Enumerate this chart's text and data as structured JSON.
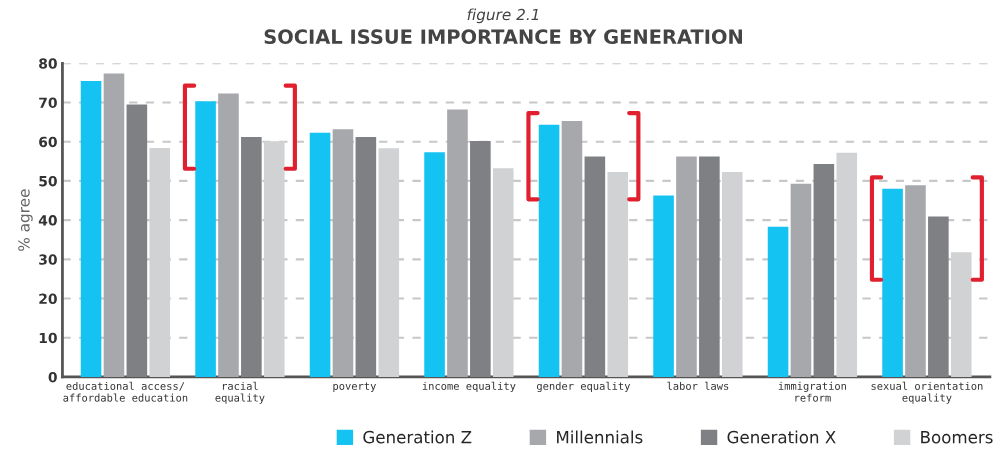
{
  "chart_data": {
    "type": "bar",
    "subtitle": "figure 2.1",
    "title": "SOCIAL ISSUE IMPORTANCE BY GENERATION",
    "ylabel": "% agree",
    "categories": [
      "educational access/\naffordable education",
      "racial\nequality",
      "poverty",
      "income equality",
      "gender equality",
      "labor laws",
      "immigration\nreform",
      "sexual orientation\nequality"
    ],
    "series": [
      {
        "name": "Generation Z",
        "color": "#14c3f2",
        "values": [
          75.5,
          70.3,
          62.3,
          57.3,
          64.3,
          46.3,
          38.3,
          48
        ]
      },
      {
        "name": "Millennials",
        "color": "#a7a8ab",
        "values": [
          77.4,
          72.3,
          63.2,
          68.2,
          65.3,
          56.2,
          49.3,
          48.9
        ]
      },
      {
        "name": "Generation X",
        "color": "#7f8084",
        "values": [
          69.5,
          61.2,
          61.2,
          60.2,
          56.2,
          56.2,
          54.3,
          40.9
        ]
      },
      {
        "name": "Boomers",
        "color": "#d1d2d4",
        "values": [
          58.4,
          60.1,
          58.3,
          53.2,
          52.3,
          52.3,
          57.2,
          31.8
        ]
      }
    ],
    "ylim": [
      0,
      80
    ],
    "yticks": [
      0,
      10,
      20,
      30,
      40,
      50,
      60,
      70,
      80
    ],
    "grid": "y",
    "legend": "bottom right"
  }
}
